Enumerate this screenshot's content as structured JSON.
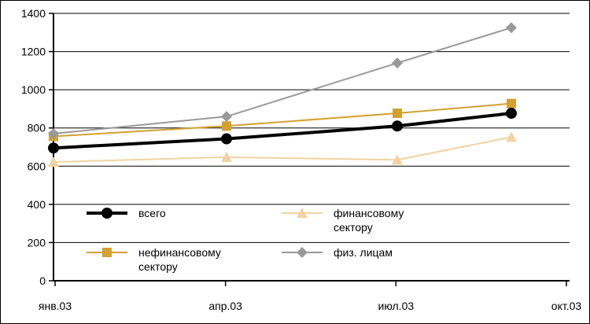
{
  "chart_data": {
    "type": "line",
    "title": "",
    "xlabel": "",
    "ylabel": "",
    "categories": [
      "янв.03",
      "апр.03",
      "июл.03",
      "окт.03"
    ],
    "ylim": [
      0,
      1400
    ],
    "yticks": [
      0,
      200,
      400,
      600,
      800,
      1000,
      1200,
      1400
    ],
    "grid": true,
    "legend_position": "inside-lower-left",
    "series": [
      {
        "name": "всего",
        "legend_lines": [
          "всего"
        ],
        "values": [
          695,
          743,
          810,
          877
        ],
        "color": "#000000",
        "marker": "circle",
        "line_width": "thick"
      },
      {
        "name": "финансовому сектору",
        "legend_lines": [
          "финансовому",
          "сектору"
        ],
        "values": [
          622,
          647,
          633,
          752
        ],
        "color": "#f0d3a0",
        "marker": "triangle"
      },
      {
        "name": "нефинансовому сектору",
        "legend_lines": [
          "нефинансовому",
          "сектору"
        ],
        "values": [
          756,
          810,
          877,
          928
        ],
        "color": "#d4a030",
        "marker": "square"
      },
      {
        "name": "физ. лицам",
        "legend_lines": [
          "физ. лицам"
        ],
        "values": [
          770,
          860,
          1140,
          1325
        ],
        "color": "#999999",
        "marker": "diamond"
      }
    ]
  }
}
